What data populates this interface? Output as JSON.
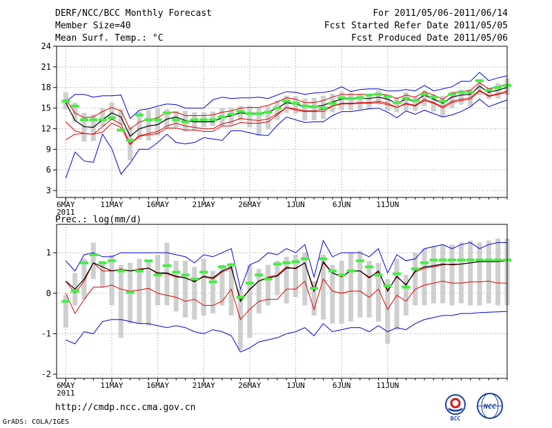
{
  "header": {
    "title": "DERF/NCC/BCC Monthly Forecast",
    "member_size": "Member Size=40",
    "variable": "Mean Surf. Temp.: °C",
    "period": "For 2011/05/06-2011/06/14",
    "started": "Fcst Started Refer Date 2011/05/05",
    "produced": "Fcst Produced Date 2011/05/06"
  },
  "x_ticks": [
    "6MAY",
    "11MAY",
    "16MAY",
    "21MAY",
    "26MAY",
    "1JUN",
    "6JUN",
    "11JUN"
  ],
  "x_year": "2011",
  "footer": {
    "url": "http://cmdp.ncc.cma.gov.cn",
    "credit": "GrADS: COLA/IGES"
  },
  "logos": {
    "bcc": "BCC",
    "ncc": "NCC"
  },
  "colors": {
    "mean": "#000000",
    "spread": "#e00000",
    "envelope": "#0000e0",
    "box": "#cfcfcf",
    "median": "#44ee44",
    "grid": "#8a8a8a"
  },
  "chart_data": [
    {
      "type": "line",
      "title": "Mean Surf. Temp.: °C",
      "ylim": [
        2,
        24
      ],
      "yticks": [
        3,
        6,
        9,
        12,
        15,
        18,
        21,
        24
      ],
      "series": [
        {
          "name": "mean",
          "values": [
            15.8,
            13.2,
            12.3,
            12.2,
            13.3,
            14.3,
            13.7,
            10.9,
            12.0,
            12.4,
            12.6,
            13.4,
            13.7,
            13.2,
            13.0,
            13.0,
            13.0,
            13.6,
            13.9,
            14.3,
            14.2,
            14.2,
            14.4,
            15.0,
            15.8,
            15.6,
            15.2,
            15.2,
            15.4,
            15.9,
            16.3,
            16.4,
            16.4,
            16.4,
            16.6,
            16.3,
            15.7,
            16.3,
            16.0,
            16.9,
            16.3,
            15.7,
            16.6,
            16.9,
            17.0,
            18.2,
            17.3,
            17.6,
            18.0
          ]
        },
        {
          "name": "upper_sd",
          "values": [
            16.3,
            14.3,
            13.6,
            13.7,
            14.5,
            15.1,
            14.6,
            11.9,
            13.0,
            13.3,
            13.6,
            14.4,
            14.4,
            13.9,
            13.9,
            13.9,
            14.0,
            14.4,
            14.6,
            15.0,
            15.1,
            15.1,
            15.4,
            15.9,
            16.5,
            16.3,
            15.8,
            15.8,
            16.1,
            16.6,
            17.0,
            17.0,
            17.0,
            17.0,
            17.1,
            16.9,
            16.4,
            16.9,
            16.6,
            17.4,
            16.9,
            16.3,
            17.2,
            17.4,
            17.6,
            18.7,
            17.8,
            18.1,
            18.5
          ]
        },
        {
          "name": "lower_sd",
          "values": [
            13.0,
            11.7,
            11.3,
            11.2,
            12.3,
            13.4,
            12.7,
            9.8,
            11.0,
            11.3,
            11.6,
            12.4,
            12.8,
            12.4,
            12.2,
            12.0,
            12.0,
            12.7,
            13.0,
            13.5,
            13.3,
            13.2,
            13.4,
            14.2,
            15.1,
            14.9,
            14.6,
            14.6,
            14.8,
            15.3,
            15.7,
            15.7,
            15.8,
            15.8,
            16.0,
            15.7,
            15.1,
            15.7,
            15.4,
            16.3,
            15.8,
            15.2,
            16.0,
            16.3,
            16.5,
            17.6,
            16.8,
            17.1,
            17.5
          ]
        },
        {
          "name": "upper_lower_sd_inner",
          "values": [
            10.4,
            11.2,
            11.3,
            11.2,
            11.5,
            12.8,
            12.2,
            9.7,
            10.9,
            11.1,
            11.3,
            12.1,
            12.1,
            11.8,
            11.8,
            11.6,
            11.6,
            12.4,
            12.4,
            12.9,
            12.8,
            12.8,
            13.0,
            14.0,
            15.1,
            14.7,
            14.5,
            14.5,
            14.5,
            15.3,
            15.6,
            15.6,
            15.7,
            15.7,
            15.8,
            15.5,
            15.1,
            15.6,
            15.3,
            16.1,
            15.7,
            15.0,
            15.8,
            16.1,
            16.3,
            17.5,
            16.7,
            17.0,
            17.3
          ]
        },
        {
          "name": "max",
          "values": [
            15.9,
            17.0,
            17.0,
            16.6,
            16.8,
            16.8,
            16.9,
            13.5,
            14.7,
            14.9,
            15.3,
            15.6,
            15.5,
            15.0,
            15.0,
            15.0,
            16.2,
            16.6,
            16.4,
            16.5,
            16.5,
            16.6,
            16.4,
            16.9,
            17.4,
            17.3,
            17.0,
            17.2,
            17.3,
            17.5,
            18.1,
            17.4,
            17.7,
            17.8,
            17.8,
            17.5,
            17.5,
            17.7,
            17.5,
            18.3,
            17.5,
            17.8,
            18.1,
            18.9,
            18.9,
            20.2,
            19.0,
            19.4,
            19.7
          ]
        },
        {
          "name": "min",
          "values": [
            4.8,
            8.6,
            7.3,
            7.1,
            11.2,
            9.1,
            5.4,
            7.0,
            9.0,
            9.0,
            10.0,
            11.2,
            10.0,
            9.8,
            10.0,
            10.7,
            10.5,
            10.3,
            11.7,
            11.7,
            11.4,
            11.1,
            11.0,
            12.5,
            13.7,
            13.3,
            12.9,
            13.0,
            13.0,
            13.9,
            14.5,
            14.5,
            14.7,
            14.9,
            15.0,
            14.4,
            13.6,
            14.6,
            14.1,
            14.7,
            14.2,
            13.7,
            14.0,
            14.5,
            15.2,
            16.3,
            15.2,
            15.7,
            16.2
          ]
        },
        {
          "name": "median",
          "values": [
            16.0,
            15.3,
            13.3,
            13.3,
            13.3,
            13.6,
            11.8,
            10.3,
            14.0,
            13.3,
            13.3,
            14.3,
            13.3,
            13.0,
            13.3,
            13.3,
            13.3,
            13.7,
            14.1,
            14.5,
            14.2,
            14.2,
            14.4,
            15.0,
            16.0,
            15.7,
            15.3,
            15.2,
            15.0,
            15.7,
            16.5,
            16.4,
            16.5,
            16.9,
            17.0,
            16.7,
            15.8,
            16.4,
            16.1,
            17.0,
            16.6,
            16.0,
            17.0,
            17.3,
            17.3,
            19.0,
            17.6,
            18.0,
            18.3
          ]
        },
        {
          "name": "box_high",
          "values": [
            17.3,
            15.8,
            14.3,
            14.1,
            15.0,
            15.8,
            14.8,
            12.3,
            14.5,
            14.7,
            15.0,
            14.8,
            14.6,
            14.6,
            14.4,
            14.4,
            14.5,
            15.0,
            15.1,
            15.3,
            15.3,
            15.1,
            15.3,
            16.1,
            16.8,
            16.7,
            16.4,
            16.5,
            16.8,
            17.1,
            17.4,
            17.2,
            17.1,
            17.1,
            17.6,
            17.0,
            16.6,
            17.3,
            16.7,
            17.6,
            17.0,
            16.8,
            17.4,
            17.7,
            17.7,
            19.0,
            18.0,
            18.6,
            19.3
          ]
        },
        {
          "name": "box_low",
          "values": [
            14.8,
            13.0,
            10.1,
            10.2,
            12.3,
            13.3,
            12.5,
            7.4,
            10.4,
            10.3,
            11.0,
            12.0,
            12.2,
            11.6,
            11.7,
            12.2,
            12.4,
            12.4,
            12.5,
            13.2,
            12.2,
            11.0,
            11.9,
            13.3,
            14.3,
            14.2,
            13.2,
            13.2,
            13.4,
            14.4,
            14.7,
            14.7,
            14.8,
            14.9,
            15.5,
            14.6,
            14.4,
            14.7,
            14.6,
            15.3,
            14.5,
            13.8,
            15.0,
            15.5,
            15.2,
            16.9,
            16.3,
            16.4,
            16.9
          ]
        }
      ]
    },
    {
      "type": "line",
      "title": "Prec.: log(mm/d)",
      "ylim": [
        -2.1,
        1.7
      ],
      "yticks": [
        -2,
        -1,
        0,
        1
      ],
      "series": [
        {
          "name": "mean",
          "values": [
            0.3,
            0.1,
            0.35,
            0.75,
            0.65,
            0.55,
            0.58,
            0.55,
            0.58,
            0.62,
            0.5,
            0.5,
            0.42,
            0.38,
            0.28,
            0.42,
            0.38,
            0.55,
            0.65,
            -0.2,
            0.1,
            0.3,
            0.38,
            0.42,
            0.62,
            0.62,
            0.75,
            0.05,
            0.78,
            0.5,
            0.42,
            0.55,
            0.55,
            0.38,
            0.55,
            0.05,
            0.42,
            0.2,
            0.55,
            0.65,
            0.68,
            0.72,
            0.7,
            0.72,
            0.75,
            0.78,
            0.78,
            0.78,
            0.8
          ]
        },
        {
          "name": "spread_upper",
          "values": [
            0.3,
            0.0,
            0.3,
            0.75,
            0.55,
            0.55,
            0.6,
            0.55,
            0.6,
            0.62,
            0.48,
            0.48,
            0.4,
            0.38,
            0.3,
            0.4,
            0.35,
            0.52,
            0.62,
            -0.15,
            0.08,
            0.3,
            0.4,
            0.45,
            0.65,
            0.6,
            0.75,
            0.1,
            0.75,
            0.5,
            0.4,
            0.55,
            0.55,
            0.4,
            0.52,
            0.08,
            0.4,
            0.22,
            0.52,
            0.62,
            0.65,
            0.7,
            0.72,
            0.72,
            0.75,
            0.78,
            0.8,
            0.78,
            0.82
          ]
        },
        {
          "name": "spread_lower",
          "values": [
            0.0,
            -0.5,
            -0.15,
            0.15,
            0.15,
            0.2,
            0.1,
            0.05,
            0.08,
            0.12,
            0.0,
            -0.05,
            -0.1,
            -0.2,
            -0.15,
            -0.3,
            -0.3,
            -0.2,
            0.1,
            -0.65,
            -0.4,
            -0.2,
            -0.15,
            -0.15,
            0.1,
            0.1,
            0.3,
            -0.4,
            0.35,
            0.05,
            0.0,
            0.05,
            0.05,
            -0.1,
            0.1,
            -0.4,
            -0.05,
            -0.2,
            0.1,
            0.2,
            0.25,
            0.3,
            0.25,
            0.25,
            0.28,
            0.28,
            0.3,
            0.25,
            0.25
          ]
        },
        {
          "name": "max",
          "values": [
            0.8,
            0.55,
            0.95,
            1.0,
            0.9,
            0.9,
            1.0,
            1.0,
            1.0,
            1.0,
            1.0,
            1.0,
            0.95,
            0.9,
            0.75,
            0.95,
            0.9,
            1.0,
            1.1,
            0.1,
            0.7,
            0.8,
            1.0,
            0.95,
            1.1,
            1.0,
            1.2,
            0.4,
            1.3,
            0.9,
            1.0,
            1.0,
            1.0,
            0.9,
            1.1,
            0.5,
            0.95,
            0.8,
            0.85,
            1.1,
            1.15,
            1.2,
            1.1,
            1.2,
            1.25,
            1.1,
            1.2,
            1.25,
            1.25
          ]
        },
        {
          "name": "min",
          "values": [
            -1.15,
            -1.25,
            -0.95,
            -1.0,
            -0.7,
            -0.65,
            -0.65,
            -0.7,
            -0.75,
            -0.75,
            -0.8,
            -0.85,
            -0.8,
            -0.85,
            -0.95,
            -1.0,
            -0.9,
            -0.95,
            -1.05,
            -1.45,
            -1.35,
            -1.2,
            -1.15,
            -1.1,
            -1.0,
            -0.95,
            -0.85,
            -1.05,
            -0.75,
            -0.95,
            -0.9,
            -0.85,
            -0.85,
            -0.95,
            -0.8,
            -0.95,
            -0.85,
            -0.9,
            -0.75,
            -0.65,
            -0.6,
            -0.55,
            -0.55,
            -0.5,
            -0.5,
            -0.48,
            -0.47,
            -0.46,
            -0.45
          ]
        },
        {
          "name": "median",
          "values": [
            -0.2,
            0.05,
            0.75,
            0.95,
            0.75,
            0.8,
            0.55,
            0.02,
            0.55,
            0.8,
            0.45,
            0.68,
            0.52,
            0.45,
            0.35,
            0.52,
            0.28,
            0.65,
            0.7,
            -0.1,
            0.25,
            0.45,
            0.35,
            0.72,
            0.75,
            0.78,
            0.85,
            0.12,
            0.85,
            0.55,
            0.45,
            0.55,
            0.8,
            0.65,
            0.45,
            0.18,
            0.48,
            0.15,
            0.6,
            0.75,
            0.82,
            0.82,
            0.82,
            0.82,
            0.82,
            0.82,
            0.82,
            0.82,
            0.82
          ]
        },
        {
          "name": "box_high",
          "values": [
            -0.05,
            0.5,
            0.85,
            1.25,
            0.8,
            0.95,
            0.7,
            0.75,
            0.85,
            0.8,
            0.95,
            1.25,
            0.8,
            0.8,
            0.65,
            0.85,
            0.55,
            0.7,
            0.75,
            0.1,
            0.7,
            0.6,
            0.7,
            0.8,
            0.9,
            0.95,
            1.0,
            0.3,
            0.95,
            0.7,
            0.8,
            1.0,
            1.05,
            0.8,
            0.75,
            0.35,
            0.85,
            0.45,
            1.0,
            1.1,
            1.15,
            1.2,
            1.2,
            1.25,
            1.3,
            1.25,
            1.3,
            1.35,
            1.35
          ]
        },
        {
          "name": "box_low",
          "values": [
            -0.85,
            -0.3,
            -0.15,
            0.35,
            0.15,
            -0.3,
            -1.1,
            -0.75,
            -0.75,
            -0.8,
            -0.3,
            -0.3,
            -0.45,
            -0.6,
            -0.65,
            -0.55,
            -0.5,
            -0.3,
            -0.55,
            -1.4,
            -1.1,
            -0.5,
            -0.3,
            -0.05,
            -0.25,
            -0.1,
            -0.3,
            -0.55,
            -0.65,
            -0.75,
            -0.75,
            -0.7,
            -0.6,
            -0.6,
            -0.7,
            -1.25,
            -0.9,
            -0.55,
            -0.3,
            -0.3,
            -0.25,
            -0.25,
            -0.3,
            -0.25,
            -0.3,
            -0.3,
            -0.25,
            -0.3,
            -0.3
          ]
        }
      ]
    }
  ]
}
